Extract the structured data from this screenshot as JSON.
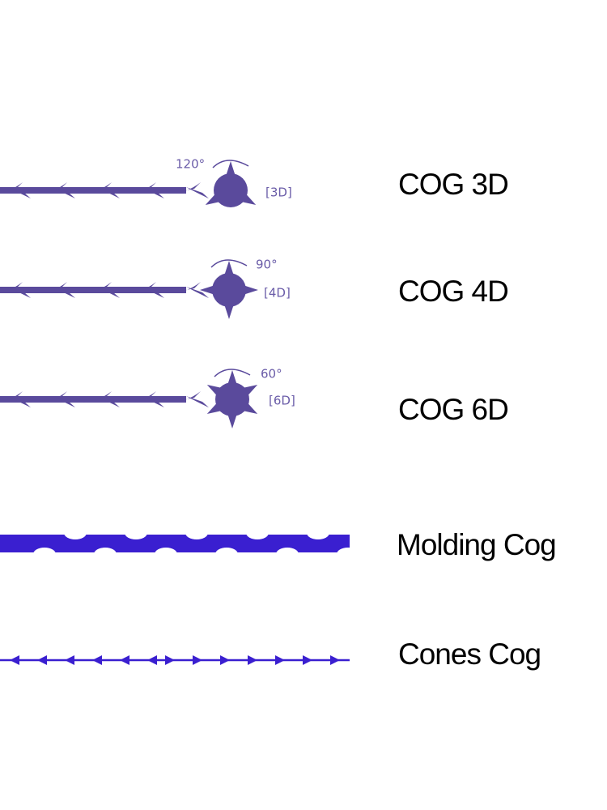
{
  "items": [
    {
      "label": "COG 3D",
      "angle": "120°",
      "code": "[3D]"
    },
    {
      "label": "COG 4D",
      "angle": "90°",
      "code": "[4D]"
    },
    {
      "label": "COG 6D",
      "angle": "60°",
      "code": "[6D]"
    },
    {
      "label": "Molding Cog"
    },
    {
      "label": "Cones Cog"
    }
  ]
}
